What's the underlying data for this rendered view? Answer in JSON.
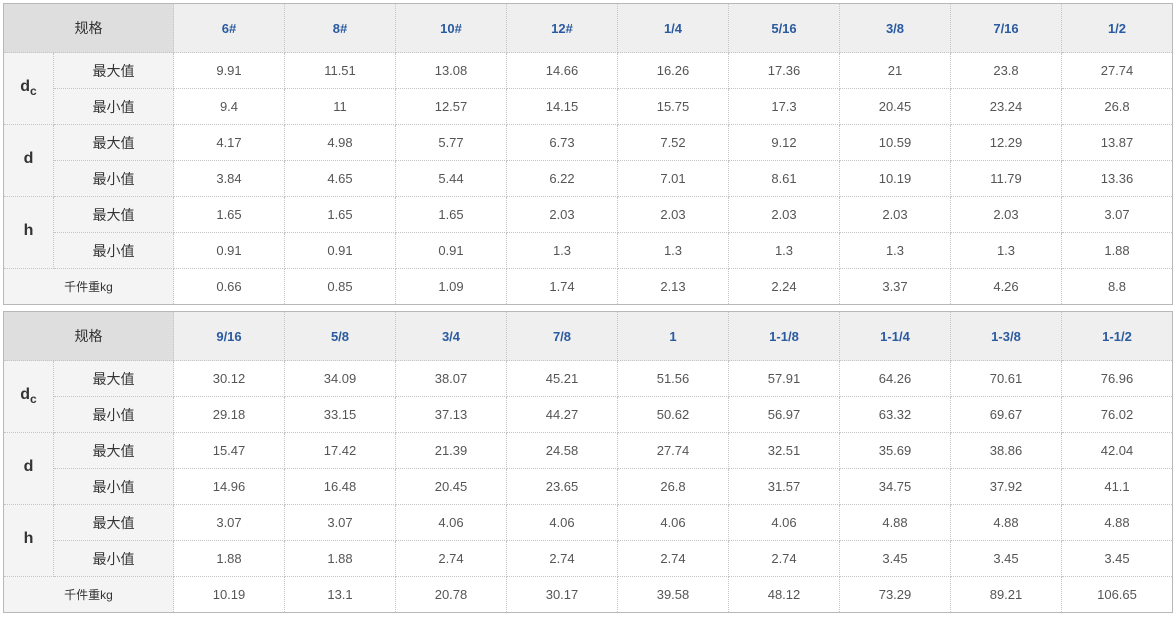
{
  "colors": {
    "header_text": "#2a5aa0",
    "header_bg": "#efefef",
    "spec_bg": "#dedede",
    "label_bg": "#f4f4f4"
  },
  "spec_label": "规格",
  "max_label": "最大值",
  "min_label": "最小值",
  "weight_label": "千件重kg",
  "groups": [
    {
      "label": "d",
      "sub": "c"
    },
    {
      "label": "d",
      "sub": ""
    },
    {
      "label": "h",
      "sub": ""
    }
  ],
  "tables": [
    {
      "columns": [
        "6#",
        "8#",
        "10#",
        "12#",
        "1/4",
        "5/16",
        "3/8",
        "7/16",
        "1/2"
      ],
      "rows": [
        [
          "9.91",
          "11.51",
          "13.08",
          "14.66",
          "16.26",
          "17.36",
          "21",
          "23.8",
          "27.74"
        ],
        [
          "9.4",
          "11",
          "12.57",
          "14.15",
          "15.75",
          "17.3",
          "20.45",
          "23.24",
          "26.8"
        ],
        [
          "4.17",
          "4.98",
          "5.77",
          "6.73",
          "7.52",
          "9.12",
          "10.59",
          "12.29",
          "13.87"
        ],
        [
          "3.84",
          "4.65",
          "5.44",
          "6.22",
          "7.01",
          "8.61",
          "10.19",
          "11.79",
          "13.36"
        ],
        [
          "1.65",
          "1.65",
          "1.65",
          "2.03",
          "2.03",
          "2.03",
          "2.03",
          "2.03",
          "3.07"
        ],
        [
          "0.91",
          "0.91",
          "0.91",
          "1.3",
          "1.3",
          "1.3",
          "1.3",
          "1.3",
          "1.88"
        ]
      ],
      "weight": [
        "0.66",
        "0.85",
        "1.09",
        "1.74",
        "2.13",
        "2.24",
        "3.37",
        "4.26",
        "8.8"
      ]
    },
    {
      "columns": [
        "9/16",
        "5/8",
        "3/4",
        "7/8",
        "1",
        "1-1/8",
        "1-1/4",
        "1-3/8",
        "1-1/2"
      ],
      "rows": [
        [
          "30.12",
          "34.09",
          "38.07",
          "45.21",
          "51.56",
          "57.91",
          "64.26",
          "70.61",
          "76.96"
        ],
        [
          "29.18",
          "33.15",
          "37.13",
          "44.27",
          "50.62",
          "56.97",
          "63.32",
          "69.67",
          "76.02"
        ],
        [
          "15.47",
          "17.42",
          "21.39",
          "24.58",
          "27.74",
          "32.51",
          "35.69",
          "38.86",
          "42.04"
        ],
        [
          "14.96",
          "16.48",
          "20.45",
          "23.65",
          "26.8",
          "31.57",
          "34.75",
          "37.92",
          "41.1"
        ],
        [
          "3.07",
          "3.07",
          "4.06",
          "4.06",
          "4.06",
          "4.06",
          "4.88",
          "4.88",
          "4.88"
        ],
        [
          "1.88",
          "1.88",
          "2.74",
          "2.74",
          "2.74",
          "2.74",
          "3.45",
          "3.45",
          "3.45"
        ]
      ],
      "weight": [
        "10.19",
        "13.1",
        "20.78",
        "30.17",
        "39.58",
        "48.12",
        "73.29",
        "89.21",
        "106.65"
      ]
    }
  ]
}
